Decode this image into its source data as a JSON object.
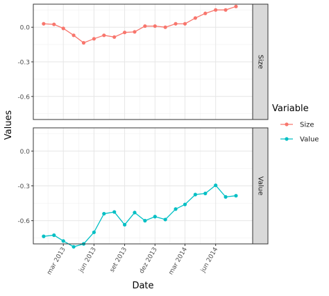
{
  "chart_data": {
    "type": "line",
    "xlabel": "Date",
    "ylabel": "Values",
    "x_ticks": [
      "2013-03-01",
      "2013-06-01",
      "2013-09-01",
      "2013-12-01",
      "2014-03-01",
      "2014-06-01"
    ],
    "x_tick_labels": [
      "mar 2013",
      "jun 2013",
      "set 2013",
      "dez 2013",
      "mar 2014",
      "jun 2014"
    ],
    "xlim": [
      "2012-12-01",
      "2014-09-20"
    ],
    "x": [
      "2013-01-01",
      "2013-02-01",
      "2013-03-01",
      "2013-04-01",
      "2013-05-01",
      "2013-06-01",
      "2013-07-01",
      "2013-08-01",
      "2013-09-01",
      "2013-10-01",
      "2013-11-01",
      "2013-12-01",
      "2014-01-01",
      "2014-02-01",
      "2014-03-01",
      "2014-04-01",
      "2014-05-01",
      "2014-06-01",
      "2014-07-01",
      "2014-08-01"
    ],
    "y_ticks": [
      0.0,
      -0.3,
      -0.6
    ],
    "y_tick_labels": [
      "0.0",
      "-0.3",
      "-0.6"
    ],
    "ylim": [
      -0.8,
      0.2
    ],
    "panels": [
      {
        "strip": "Size",
        "series": [
          {
            "name": "Size",
            "color": "#F8766D",
            "values": [
              0.03,
              0.025,
              -0.01,
              -0.07,
              -0.135,
              -0.1,
              -0.07,
              -0.085,
              -0.045,
              -0.04,
              0.01,
              0.01,
              0.0,
              0.03,
              0.03,
              0.08,
              0.12,
              0.15,
              0.15,
              0.18
            ]
          }
        ]
      },
      {
        "strip": "Value",
        "series": [
          {
            "name": "Value",
            "color": "#00BFC4",
            "values": [
              -0.735,
              -0.725,
              -0.775,
              -0.825,
              -0.8,
              -0.7,
              -0.54,
              -0.525,
              -0.635,
              -0.53,
              -0.6,
              -0.565,
              -0.59,
              -0.5,
              -0.46,
              -0.375,
              -0.365,
              -0.295,
              -0.395,
              -0.385
            ]
          }
        ]
      }
    ],
    "legend": {
      "title": "Variable",
      "position": "right",
      "items": [
        {
          "label": "Size",
          "color": "#F8766D"
        },
        {
          "label": "Value",
          "color": "#00BFC4"
        }
      ]
    },
    "grid": true
  }
}
